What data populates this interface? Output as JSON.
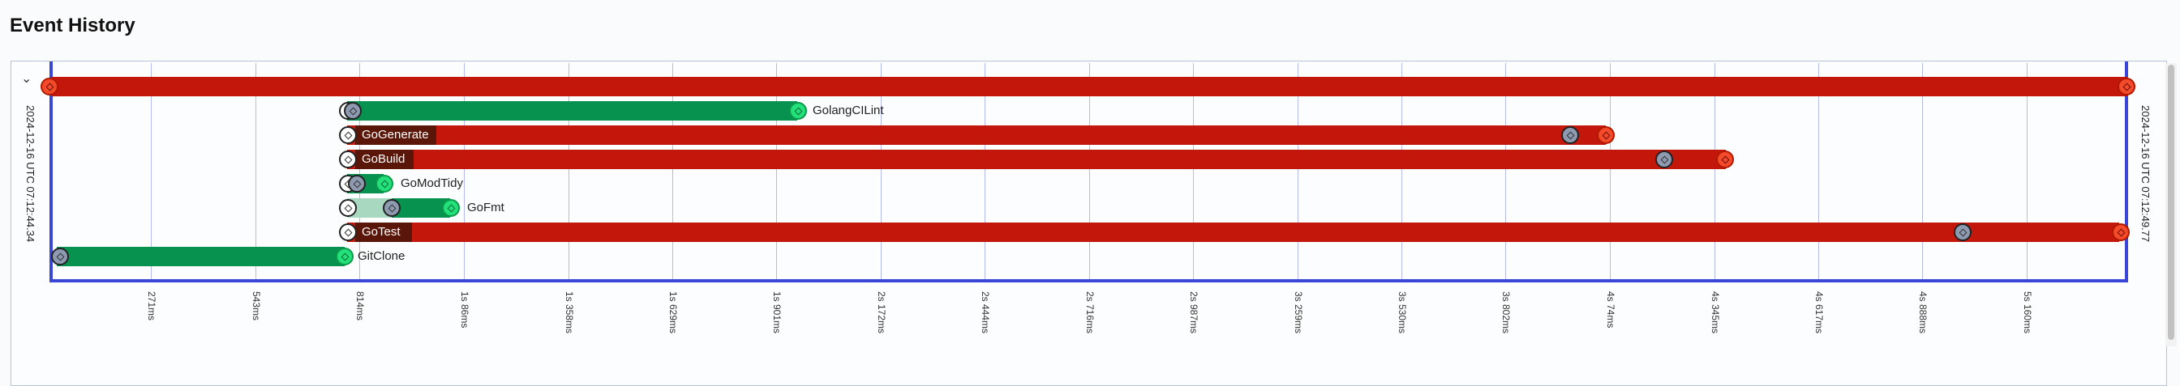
{
  "header": {
    "title": "Event History"
  },
  "timeline": {
    "start_label": "2024-12-16 UTC 07:12:44.34",
    "end_label": "2024-12-16 UTC 07:12:49.77",
    "ticks": [
      "271ms",
      "543ms",
      "814ms",
      "1s 86ms",
      "1s 358ms",
      "1s 629ms",
      "1s 901ms",
      "2s 172ms",
      "2s 444ms",
      "2s 716ms",
      "2s 987ms",
      "3s 259ms",
      "3s 530ms",
      "3s 802ms",
      "4s 74ms",
      "4s 345ms",
      "4s 617ms",
      "4s 888ms",
      "5s 160ms"
    ],
    "rows": [
      {
        "name": "",
        "status": "failed",
        "color": "#c4170c"
      },
      {
        "name": "GolangCILint",
        "status": "succeeded",
        "color": "#07924f"
      },
      {
        "name": "GoGenerate",
        "status": "failed",
        "color": "#c4170c"
      },
      {
        "name": "GoBuild",
        "status": "failed",
        "color": "#c4170c"
      },
      {
        "name": "GoModTidy",
        "status": "succeeded",
        "color": "#07924f"
      },
      {
        "name": "GoFmt",
        "status": "succeeded",
        "color": "#07924f"
      },
      {
        "name": "GoTest",
        "status": "failed",
        "color": "#c4170c"
      },
      {
        "name": "GitClone",
        "status": "succeeded",
        "color": "#07924f"
      }
    ]
  },
  "icons": {
    "collapse": "chevron-down-icon",
    "marker": "diamond-icon"
  }
}
